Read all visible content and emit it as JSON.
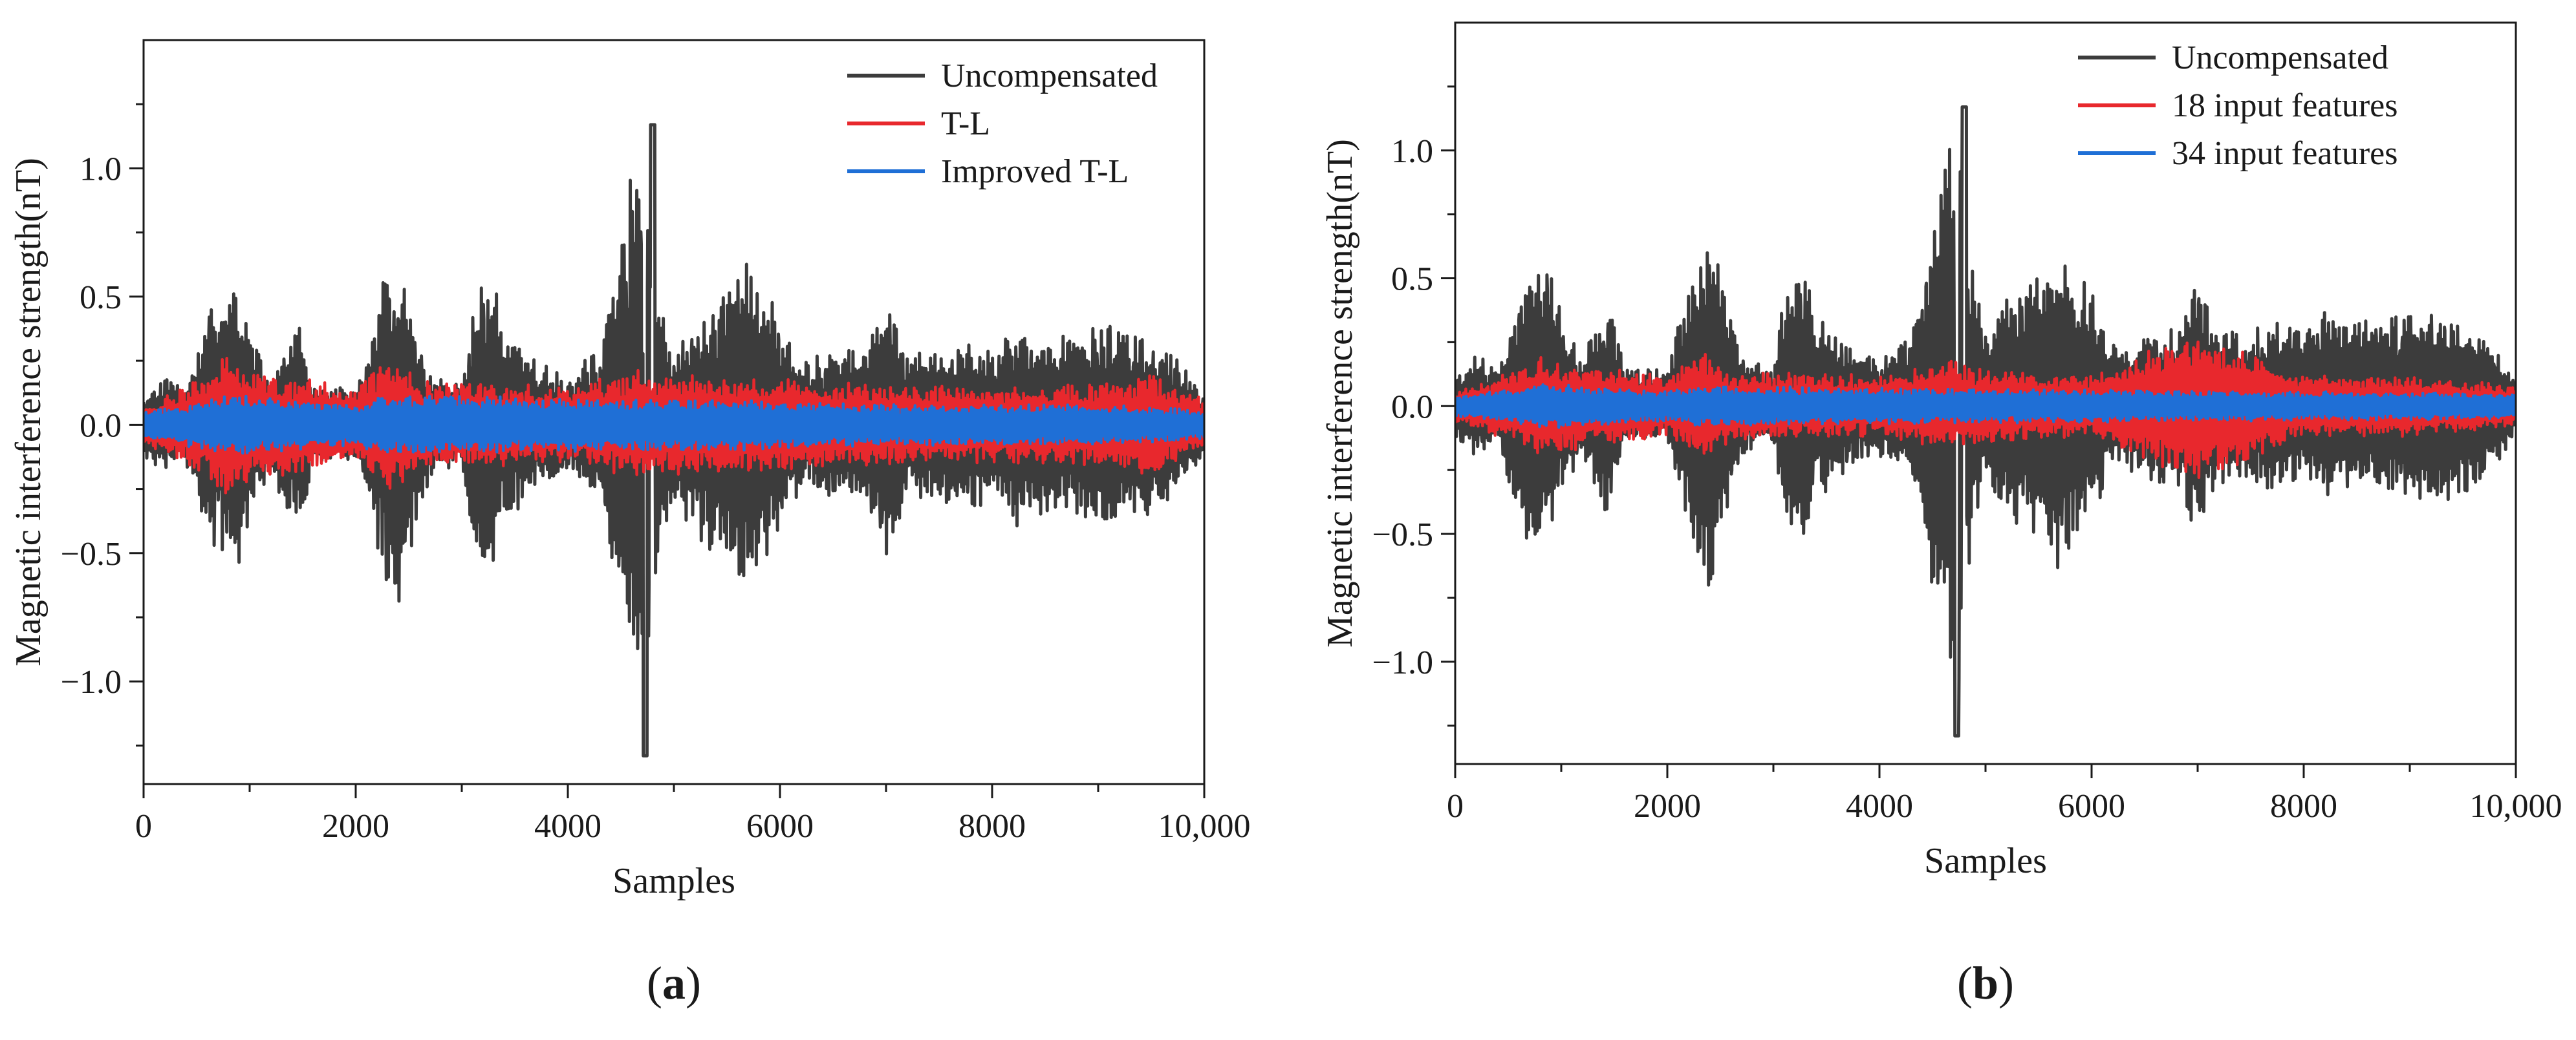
{
  "chart_data": [
    {
      "type": "line",
      "panel_label": "(a)",
      "panel_letter": "a",
      "xlabel": "Samples",
      "ylabel": "Magnetic interference strength(nT)",
      "xlim": [
        0,
        10000
      ],
      "ylim": [
        -1.4,
        1.5
      ],
      "xticks": [
        0,
        2000,
        4000,
        6000,
        8000,
        10000
      ],
      "xtick_labels": [
        "0",
        "2000",
        "4000",
        "6000",
        "8000",
        "10,000"
      ],
      "yticks": [
        -1.0,
        -0.5,
        0.0,
        0.5,
        1.0
      ],
      "ytick_labels": [
        "−1.0",
        "−0.5",
        "0.0",
        "0.5",
        "1.0"
      ],
      "legend_position": "top-right",
      "grid": false,
      "series": [
        {
          "name": "Uncompensated",
          "color": "#3c3c3c",
          "envelope_x": [
            0,
            200,
            400,
            600,
            700,
            800,
            900,
            1000,
            1200,
            1450,
            1600,
            2000,
            2250,
            2400,
            2500,
            2700,
            3000,
            3150,
            3300,
            3400,
            3550,
            3700,
            4000,
            4300,
            4650,
            4750,
            4850,
            5000,
            5200,
            5500,
            5700,
            6000,
            6200,
            6500,
            6800,
            7000,
            7200,
            7500,
            7700,
            8000,
            8200,
            8500,
            8700,
            9000,
            9200,
            9500,
            9700,
            10000
          ],
          "envelope_y": [
            0.12,
            0.2,
            0.15,
            0.45,
            0.55,
            0.58,
            0.6,
            0.35,
            0.2,
            0.45,
            0.15,
            0.15,
            0.6,
            0.75,
            0.55,
            0.2,
            0.15,
            0.6,
            0.6,
            0.35,
            0.35,
            0.25,
            0.2,
            0.3,
            1.1,
            1.17,
            0.6,
            0.3,
            0.45,
            0.55,
            0.67,
            0.45,
            0.25,
            0.3,
            0.3,
            0.55,
            0.3,
            0.3,
            0.35,
            0.3,
            0.4,
            0.35,
            0.35,
            0.4,
            0.4,
            0.35,
            0.3,
            0.12
          ],
          "min_value": -1.29,
          "max_value": 1.17
        },
        {
          "name": "T-L",
          "color": "#e8282d",
          "envelope_x": [
            0,
            600,
            800,
            1000,
            2000,
            2300,
            2600,
            4000,
            4700,
            4900,
            6000,
            7000,
            8000,
            9000,
            9500,
            10000
          ],
          "envelope_y": [
            0.08,
            0.2,
            0.3,
            0.22,
            0.15,
            0.28,
            0.18,
            0.15,
            0.22,
            0.2,
            0.18,
            0.16,
            0.15,
            0.16,
            0.2,
            0.1
          ]
        },
        {
          "name": "Improved T-L",
          "color": "#1f6fd6",
          "envelope_x": [
            0,
            600,
            800,
            2000,
            2300,
            4700,
            5600,
            7000,
            9000,
            10000
          ],
          "envelope_y": [
            0.05,
            0.1,
            0.12,
            0.08,
            0.12,
            0.1,
            0.1,
            0.08,
            0.08,
            0.06
          ]
        }
      ]
    },
    {
      "type": "line",
      "panel_label": "(b)",
      "panel_letter": "b",
      "xlabel": "Samples",
      "ylabel": "Magnetic interference strength(nT)",
      "xlim": [
        0,
        10000
      ],
      "ylim": [
        -1.4,
        1.5
      ],
      "xticks": [
        0,
        2000,
        4000,
        6000,
        8000,
        10000
      ],
      "xtick_labels": [
        "0",
        "2000",
        "4000",
        "6000",
        "8000",
        "10,000"
      ],
      "yticks": [
        -1.0,
        -0.5,
        0.0,
        0.5,
        1.0
      ],
      "ytick_labels": [
        "−1.0",
        "−0.5",
        "0.0",
        "0.5",
        "1.0"
      ],
      "legend_position": "top-right",
      "grid": false,
      "series": [
        {
          "name": "Uncompensated",
          "color": "#3c3c3c",
          "envelope_x": [
            0,
            200,
            400,
            600,
            700,
            800,
            900,
            1000,
            1200,
            1450,
            1600,
            2000,
            2250,
            2400,
            2500,
            2700,
            3000,
            3150,
            3300,
            3400,
            3550,
            3700,
            4000,
            4300,
            4650,
            4750,
            4850,
            5000,
            5200,
            5500,
            5700,
            6000,
            6200,
            6500,
            6800,
            7000,
            7200,
            7500,
            7700,
            8000,
            8200,
            8500,
            8700,
            9000,
            9200,
            9500,
            9700,
            10000
          ],
          "envelope_y": [
            0.12,
            0.2,
            0.15,
            0.45,
            0.55,
            0.58,
            0.6,
            0.35,
            0.2,
            0.45,
            0.15,
            0.15,
            0.6,
            0.75,
            0.55,
            0.2,
            0.15,
            0.6,
            0.6,
            0.35,
            0.35,
            0.25,
            0.2,
            0.3,
            1.1,
            1.17,
            0.6,
            0.3,
            0.45,
            0.55,
            0.67,
            0.45,
            0.25,
            0.3,
            0.3,
            0.55,
            0.3,
            0.3,
            0.35,
            0.3,
            0.4,
            0.35,
            0.35,
            0.4,
            0.4,
            0.35,
            0.3,
            0.12
          ],
          "min_value": -1.29,
          "max_value": 1.17
        },
        {
          "name": "18 input features",
          "color": "#e8282d",
          "envelope_x": [
            0,
            600,
            800,
            2000,
            2300,
            2600,
            4000,
            4700,
            4900,
            6000,
            7000,
            8000,
            9000,
            10000
          ],
          "envelope_y": [
            0.06,
            0.15,
            0.2,
            0.12,
            0.22,
            0.14,
            0.12,
            0.18,
            0.15,
            0.12,
            0.3,
            0.12,
            0.12,
            0.08
          ]
        },
        {
          "name": "34 input features",
          "color": "#1f6fd6",
          "envelope_x": [
            0,
            600,
            800,
            2000,
            2300,
            4700,
            7000,
            10000
          ],
          "envelope_y": [
            0.04,
            0.07,
            0.09,
            0.06,
            0.08,
            0.07,
            0.06,
            0.05
          ]
        }
      ]
    }
  ]
}
